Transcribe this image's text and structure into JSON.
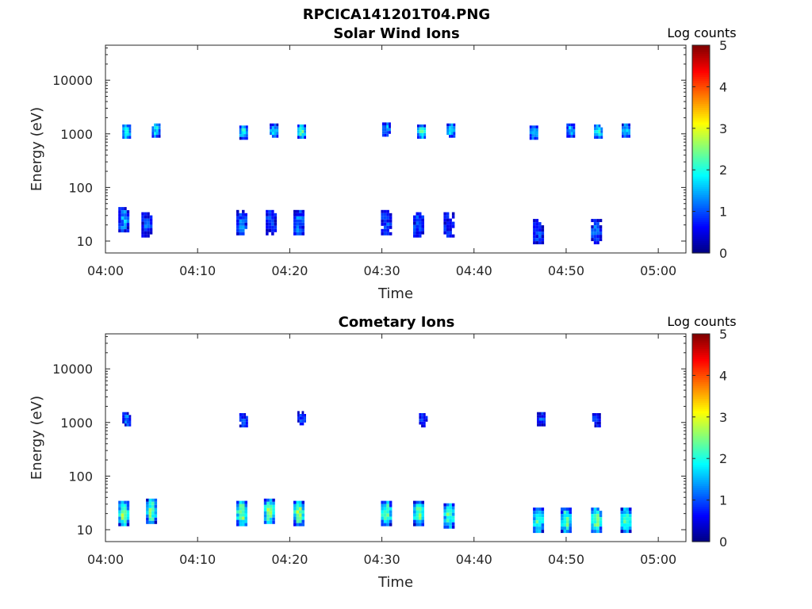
{
  "figure_title": "RPCICA141201T04.PNG",
  "colorbar_label": "Log counts",
  "colormap": [
    "#00007f",
    "#0000ff",
    "#007fff",
    "#00ffff",
    "#7fff7f",
    "#ffff00",
    "#ff7f00",
    "#ff0000",
    "#7f0000"
  ],
  "chart_data": [
    {
      "type": "heatmap",
      "title": "Solar Wind Ions",
      "xlabel": "Time",
      "ylabel": "Energy (eV)",
      "yscale": "log",
      "ylim": [
        6,
        45000
      ],
      "y_ticks": [
        10,
        100,
        1000,
        10000
      ],
      "y_tick_labels": [
        "10",
        "100",
        "1000",
        "10000"
      ],
      "xlim": [
        "04:00",
        "05:03"
      ],
      "x_ticks": [
        "04:00",
        "04:10",
        "04:20",
        "04:30",
        "04:40",
        "04:50",
        "05:00"
      ],
      "colorbar": {
        "label": "Log counts",
        "range": [
          0,
          5
        ],
        "ticks": [
          "0",
          "1",
          "2",
          "3",
          "4",
          "5"
        ]
      },
      "blobs": [
        {
          "t": "04:02.3",
          "e": 1100,
          "v": 2.2
        },
        {
          "t": "04:05.5",
          "e": 1150,
          "v": 1.9
        },
        {
          "t": "04:15.0",
          "e": 1050,
          "v": 2.0
        },
        {
          "t": "04:18.3",
          "e": 1150,
          "v": 1.7
        },
        {
          "t": "04:21.3",
          "e": 1100,
          "v": 2.2
        },
        {
          "t": "04:30.5",
          "e": 1200,
          "v": 1.5
        },
        {
          "t": "04:34.3",
          "e": 1100,
          "v": 2.3
        },
        {
          "t": "04:37.5",
          "e": 1150,
          "v": 1.8
        },
        {
          "t": "04:46.5",
          "e": 1050,
          "v": 1.9
        },
        {
          "t": "04:50.5",
          "e": 1150,
          "v": 1.7
        },
        {
          "t": "04:53.5",
          "e": 1100,
          "v": 2.0
        },
        {
          "t": "04:56.5",
          "e": 1150,
          "v": 1.8
        },
        {
          "t": "04:02.0",
          "e": 25,
          "v": 1.4
        },
        {
          "t": "04:04.5",
          "e": 20,
          "v": 1.0
        },
        {
          "t": "04:14.8",
          "e": 22,
          "v": 1.2
        },
        {
          "t": "04:18.0",
          "e": 22,
          "v": 1.0
        },
        {
          "t": "04:21.0",
          "e": 22,
          "v": 1.3
        },
        {
          "t": "04:30.5",
          "e": 22,
          "v": 1.0
        },
        {
          "t": "04:34.0",
          "e": 20,
          "v": 1.1
        },
        {
          "t": "04:37.3",
          "e": 20,
          "v": 0.9
        },
        {
          "t": "04:47.0",
          "e": 15,
          "v": 1.0
        },
        {
          "t": "04:53.3",
          "e": 15,
          "v": 1.2
        }
      ]
    },
    {
      "type": "heatmap",
      "title": "Cometary Ions",
      "xlabel": "Time",
      "ylabel": "Energy (eV)",
      "yscale": "log",
      "ylim": [
        6,
        45000
      ],
      "y_ticks": [
        10,
        100,
        1000,
        10000
      ],
      "y_tick_labels": [
        "10",
        "100",
        "1000",
        "10000"
      ],
      "xlim": [
        "04:00",
        "05:03"
      ],
      "x_ticks": [
        "04:00",
        "04:10",
        "04:20",
        "04:30",
        "04:40",
        "04:50",
        "05:00"
      ],
      "colorbar": {
        "label": "Log counts",
        "range": [
          0,
          5
        ],
        "ticks": [
          "0",
          "1",
          "2",
          "3",
          "4",
          "5"
        ]
      },
      "blobs": [
        {
          "t": "04:02.0",
          "e": 20,
          "v": 2.6
        },
        {
          "t": "04:05.0",
          "e": 22,
          "v": 2.5
        },
        {
          "t": "04:14.8",
          "e": 20,
          "v": 2.7
        },
        {
          "t": "04:17.8",
          "e": 22,
          "v": 2.6
        },
        {
          "t": "04:21.0",
          "e": 20,
          "v": 2.6
        },
        {
          "t": "04:30.5",
          "e": 20,
          "v": 2.5
        },
        {
          "t": "04:34.0",
          "e": 20,
          "v": 2.5
        },
        {
          "t": "04:37.3",
          "e": 18,
          "v": 2.4
        },
        {
          "t": "04:47.0",
          "e": 15,
          "v": 2.4
        },
        {
          "t": "04:50.0",
          "e": 15,
          "v": 2.4
        },
        {
          "t": "04:53.3",
          "e": 15,
          "v": 2.5
        },
        {
          "t": "04:56.5",
          "e": 15,
          "v": 2.4
        },
        {
          "t": "04:02.3",
          "e": 1150,
          "v": 1.2
        },
        {
          "t": "04:15.0",
          "e": 1100,
          "v": 1.0
        },
        {
          "t": "04:21.3",
          "e": 1200,
          "v": 1.0
        },
        {
          "t": "04:34.5",
          "e": 1100,
          "v": 0.8
        },
        {
          "t": "04:47.3",
          "e": 1150,
          "v": 1.0
        },
        {
          "t": "04:53.3",
          "e": 1100,
          "v": 0.9
        }
      ]
    }
  ]
}
